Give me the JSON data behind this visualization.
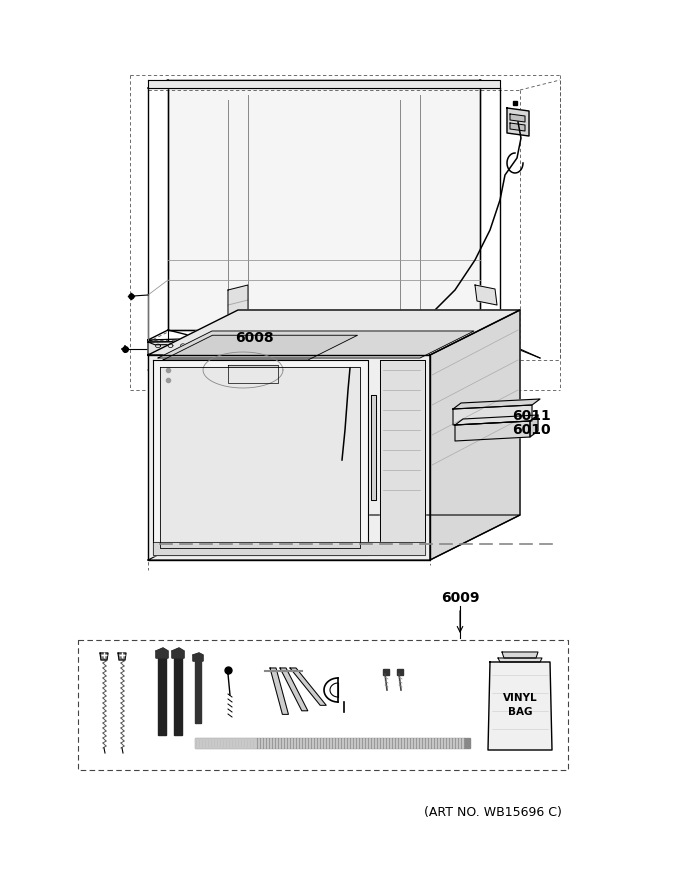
{
  "art_no": "(ART NO. WB15696 C)",
  "bg_color": "#ffffff",
  "line_color": "#000000"
}
